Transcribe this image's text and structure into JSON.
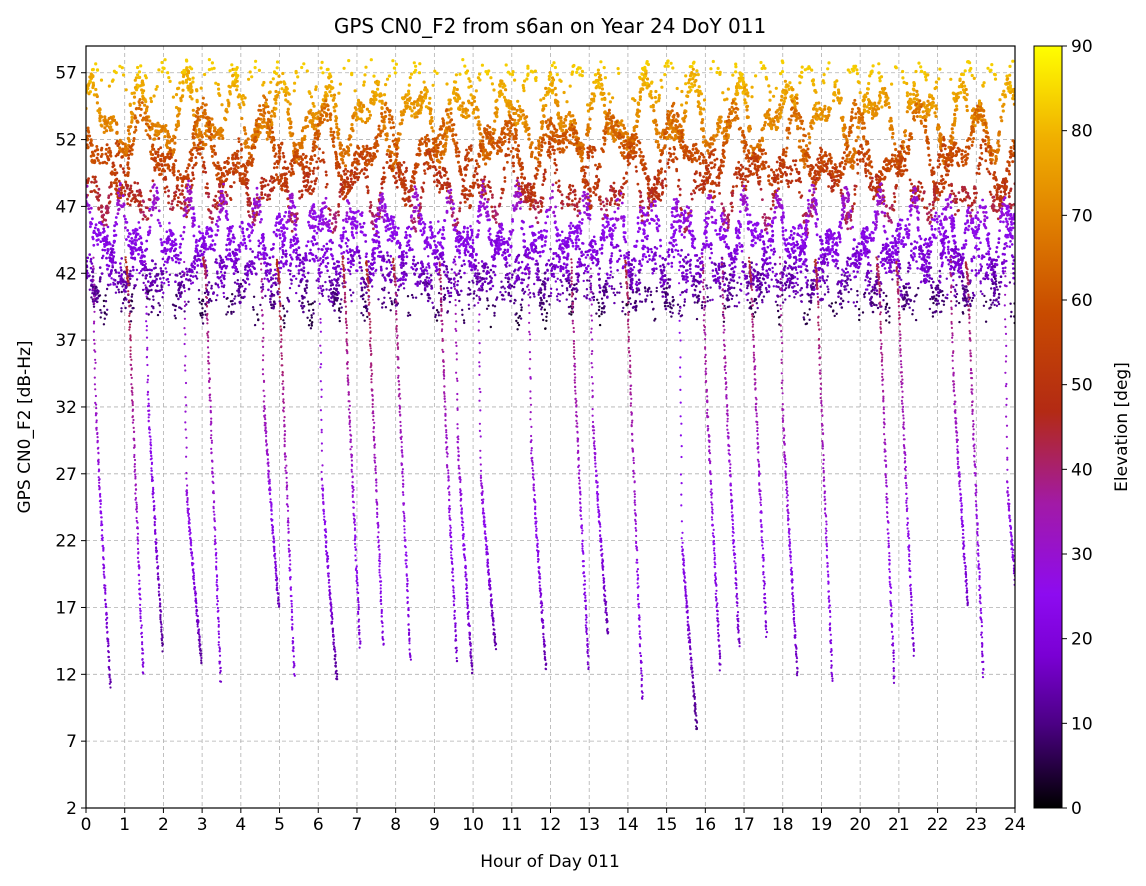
{
  "chart_data": {
    "type": "scatter",
    "title": "GPS CN0_F2 from s6an on Year 24 DoY 011",
    "xlabel": "Hour of Day 011",
    "ylabel": "GPS CN0_F2 [dB-Hz]",
    "xlim": [
      0,
      24
    ],
    "ylim": [
      2,
      59
    ],
    "x_ticks": [
      "0",
      "1",
      "2",
      "3",
      "4",
      "5",
      "6",
      "7",
      "8",
      "9",
      "10",
      "11",
      "12",
      "13",
      "14",
      "15",
      "16",
      "17",
      "18",
      "19",
      "20",
      "21",
      "22",
      "23",
      "24"
    ],
    "y_ticks": [
      "2",
      "7",
      "12",
      "17",
      "22",
      "27",
      "32",
      "37",
      "42",
      "47",
      "52",
      "57"
    ],
    "grid": true,
    "colorbar": {
      "label": "Elevation [deg]",
      "range": [
        0,
        90
      ],
      "ticks": [
        "0",
        "10",
        "20",
        "30",
        "40",
        "50",
        "60",
        "70",
        "80",
        "90"
      ],
      "colormap": "gnuplot",
      "colors": [
        "#000000",
        "#4b0084",
        "#7a00d4",
        "#8d0bf0",
        "#a21aa6",
        "#b32a14",
        "#c84b00",
        "#e08000",
        "#f0b000",
        "#ffff00"
      ]
    },
    "series_description": "Dense per-satellite arc points; high-elevation arcs 47-58 dB-Hz, low-elevation tracks 40-47 dB-Hz, rising/setting tails down to ~8-15 dB-Hz",
    "low_tails": [
      {
        "t": 0.25,
        "peak": 32.5,
        "min": 11,
        "elev": 35
      },
      {
        "t": 1.1,
        "peak": 41,
        "min": 12,
        "elev": 48
      },
      {
        "t": 1.6,
        "peak": 33,
        "min": 14,
        "elev": 30
      },
      {
        "t": 2.6,
        "peak": 26,
        "min": 13,
        "elev": 32
      },
      {
        "t": 3.1,
        "peak": 42,
        "min": 11.5,
        "elev": 45
      },
      {
        "t": 4.6,
        "peak": 32.5,
        "min": 17,
        "elev": 38
      },
      {
        "t": 5.0,
        "peak": 41,
        "min": 12,
        "elev": 48
      },
      {
        "t": 6.1,
        "peak": 26.5,
        "min": 11.5,
        "elev": 30
      },
      {
        "t": 6.7,
        "peak": 40,
        "min": 14,
        "elev": 45
      },
      {
        "t": 7.3,
        "peak": 41,
        "min": 14,
        "elev": 48
      },
      {
        "t": 8.0,
        "peak": 41,
        "min": 13,
        "elev": 45
      },
      {
        "t": 9.2,
        "peak": 38,
        "min": 13,
        "elev": 42
      },
      {
        "t": 9.6,
        "peak": 30,
        "min": 12,
        "elev": 35
      },
      {
        "t": 10.2,
        "peak": 27,
        "min": 14,
        "elev": 32
      },
      {
        "t": 11.5,
        "peak": 29.5,
        "min": 12.5,
        "elev": 34
      },
      {
        "t": 12.6,
        "peak": 37,
        "min": 12.5,
        "elev": 42
      },
      {
        "t": 13.1,
        "peak": 31,
        "min": 15,
        "elev": 34
      },
      {
        "t": 14.0,
        "peak": 40,
        "min": 10,
        "elev": 45
      },
      {
        "t": 15.4,
        "peak": 22,
        "min": 8,
        "elev": 26
      },
      {
        "t": 16.0,
        "peak": 36,
        "min": 12.5,
        "elev": 40
      },
      {
        "t": 16.5,
        "peak": 36,
        "min": 14,
        "elev": 40
      },
      {
        "t": 17.2,
        "peak": 41,
        "min": 15,
        "elev": 45
      },
      {
        "t": 18.0,
        "peak": 32,
        "min": 12,
        "elev": 38
      },
      {
        "t": 18.9,
        "peak": 41,
        "min": 11.5,
        "elev": 46
      },
      {
        "t": 20.5,
        "peak": 41,
        "min": 11.5,
        "elev": 45
      },
      {
        "t": 21.0,
        "peak": 40,
        "min": 13.5,
        "elev": 44
      },
      {
        "t": 22.4,
        "peak": 35,
        "min": 17,
        "elev": 40
      },
      {
        "t": 22.8,
        "peak": 41,
        "min": 12,
        "elev": 45
      },
      {
        "t": 23.8,
        "peak": 26.5,
        "min": 13,
        "elev": 32
      }
    ]
  }
}
